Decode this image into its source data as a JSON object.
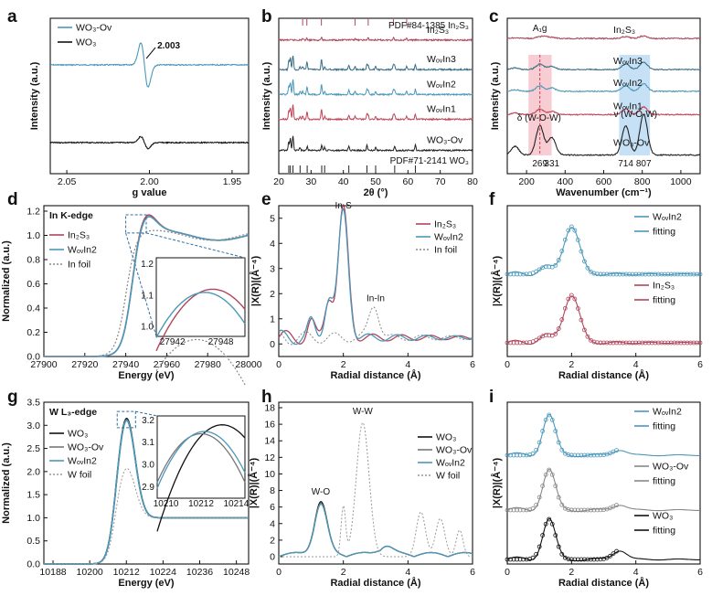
{
  "chart_data": [
    {
      "panel": "a",
      "type": "line",
      "xlabel": "g value",
      "ylabel": "Intensity (a.u.)",
      "xlim": [
        2.06,
        1.94
      ],
      "ylim": [
        0,
        1
      ],
      "xticks": [
        "2.05",
        "2.00",
        "1.95"
      ],
      "annotations": [
        "2.003"
      ],
      "series": [
        {
          "name": "WO3-Ov",
          "label": "WO₃-Ov",
          "color": "#4b98b9",
          "offset": 0.7,
          "amp": 0.26,
          "center": 2.003
        },
        {
          "name": "WO3",
          "label": "WO₃",
          "color": "#111111",
          "offset": 0.2,
          "amp": 0.07,
          "center": 2.003
        }
      ]
    },
    {
      "panel": "b",
      "type": "line",
      "xlabel": "2θ (°)",
      "ylabel": "Intensity (a.u.)",
      "xlim": [
        20,
        80
      ],
      "xticks": [
        "20",
        "30",
        "40",
        "50",
        "60",
        "70",
        "80"
      ],
      "ref_top": "PDF#84-1385 In₂S₃",
      "ref_bottom": "PDF#71-2141 WO₃",
      "series": [
        {
          "name": "In2S3",
          "label": "In₂S₃",
          "color": "#b0465c",
          "offset": 0.86
        },
        {
          "name": "WOvIn3",
          "label": "WₒᵥIn3",
          "color": "#3a6f88",
          "offset": 0.67
        },
        {
          "name": "WOvIn2",
          "label": "WₒᵥIn2",
          "color": "#4b98b9",
          "offset": 0.51
        },
        {
          "name": "WOvIn1",
          "label": "WₒᵥIn1",
          "color": "#c14457",
          "offset": 0.35
        },
        {
          "name": "WO3-Ov",
          "label": "WO₃-Ov",
          "color": "#222222",
          "offset": 0.15
        }
      ]
    },
    {
      "panel": "c",
      "type": "line",
      "xlabel": "Wavenumber (cm⁻¹)",
      "ylabel": "Intensity (a.u.)",
      "xlim": [
        100,
        1100
      ],
      "xticks": [
        "200",
        "400",
        "600",
        "800",
        "1000"
      ],
      "peak_labels": [
        "269",
        "331",
        "714",
        "807"
      ],
      "mode_labels": [
        "A₁g",
        "δ (W-O-W)",
        "ν (W-O-W)"
      ],
      "series": [
        {
          "name": "In2S3",
          "label": "In₂S₃",
          "color": "#b0465c",
          "offset": 0.87
        },
        {
          "name": "WOvIn3",
          "label": "WₒᵥIn3",
          "color": "#3a6f88",
          "offset": 0.67
        },
        {
          "name": "WOvIn2",
          "label": "WₒᵥIn2",
          "color": "#4b98b9",
          "offset": 0.53
        },
        {
          "name": "WOvIn1",
          "label": "WₒᵥIn1",
          "color": "#c14457",
          "offset": 0.38
        },
        {
          "name": "WO3-Ov",
          "label": "WO₃-Ov",
          "color": "#222222",
          "offset": 0.12
        }
      ]
    },
    {
      "panel": "d",
      "type": "line",
      "title": "In K-edge",
      "xlabel": "Energy (eV)",
      "ylabel": "Normalized (a.u.)",
      "xlim": [
        27900,
        28000
      ],
      "ylim": [
        0,
        1.2
      ],
      "xticks": [
        "27900",
        "27920",
        "27940",
        "27960",
        "27980",
        "28000"
      ],
      "yticks": [
        "0.0",
        "0.2",
        "0.4",
        "0.6",
        "0.8",
        "1.0",
        "1.2"
      ],
      "inset": {
        "xticks": [
          "27942",
          "27948"
        ],
        "yticks": [
          "1.0",
          "1.1",
          "1.2"
        ]
      },
      "series": [
        {
          "name": "In2S3",
          "label": "In₂S₃",
          "color": "#b0465c",
          "edge": 27943,
          "peak": 1.12
        },
        {
          "name": "WOvIn2",
          "label": "WₒᵥIn2",
          "color": "#4b98b9",
          "edge": 27943,
          "peak": 1.11
        },
        {
          "name": "In foil",
          "label": "In foil",
          "color": "#888888",
          "edge": 27940,
          "peak": 1.01
        }
      ]
    },
    {
      "panel": "e",
      "type": "line",
      "xlabel": "Radial distance (Å)",
      "ylabel": "|X(R)|(Å⁻⁴)",
      "xlim": [
        0,
        6
      ],
      "ylim": [
        -0.5,
        5.5
      ],
      "xticks": [
        "0",
        "2",
        "4",
        "6"
      ],
      "yticks": [
        "0",
        "1",
        "2",
        "3",
        "4",
        "5"
      ],
      "annotations": [
        "In-S",
        "In-In"
      ],
      "series": [
        {
          "name": "In2S3",
          "label": "In₂S₃",
          "color": "#b0465c",
          "peak_r": 2.0,
          "peak": 5.1
        },
        {
          "name": "WOvIn2",
          "label": "WₒᵥIn2",
          "color": "#4b98b9",
          "peak_r": 2.0,
          "peak": 5.0
        },
        {
          "name": "In foil",
          "label": "In foil",
          "color": "#888888",
          "peak_r": 2.95,
          "peak": 1.3
        }
      ]
    },
    {
      "panel": "f",
      "type": "line",
      "xlabel": "Radial distance (Å)",
      "ylabel": "|X(R)|(Å⁻⁴)",
      "xlim": [
        0,
        6
      ],
      "xticks": [
        "0",
        "2",
        "4",
        "6"
      ],
      "series": [
        {
          "name": "WOvIn2",
          "label": "WₒᵥIn2",
          "color": "#4b98b9"
        },
        {
          "name": "fitting (WOvIn2)",
          "label": "fitting",
          "color": "#4b98b9"
        },
        {
          "name": "In2S3",
          "label": "In₂S₃",
          "color": "#b0465c"
        },
        {
          "name": "fitting (In2S3)",
          "label": "fitting",
          "color": "#b0465c"
        }
      ]
    },
    {
      "panel": "g",
      "type": "line",
      "title": "W L₃-edge",
      "xlabel": "Energy (eV)",
      "ylabel": "Normalized (a.u.)",
      "xlim": [
        10185,
        10252
      ],
      "ylim": [
        0,
        3.5
      ],
      "xticks": [
        "10188",
        "10200",
        "10212",
        "10224",
        "10236",
        "10248"
      ],
      "yticks": [
        "0.0",
        "0.5",
        "1.0",
        "1.5",
        "2.0",
        "2.5",
        "3.0",
        "3.5"
      ],
      "inset": {
        "xticks": [
          "10210",
          "10212",
          "10214"
        ],
        "yticks": [
          "2.9",
          "3.0",
          "3.1",
          "3.2"
        ]
      },
      "series": [
        {
          "name": "WO3",
          "label": "WO₃",
          "color": "#111111",
          "peak": 3.18
        },
        {
          "name": "WO3-Ov",
          "label": "WO₃-Ov",
          "color": "#777777",
          "peak": 3.14
        },
        {
          "name": "WOvIn2",
          "label": "WₒᵥIn2",
          "color": "#4b98b9",
          "peak": 3.15
        },
        {
          "name": "W foil",
          "label": "W foil",
          "color": "#999999",
          "peak": 2.1
        }
      ]
    },
    {
      "panel": "h",
      "type": "line",
      "xlabel": "Radial distance (Å)",
      "ylabel": "|X(R)|(Å⁻⁴)",
      "xlim": [
        0,
        6
      ],
      "ylim": [
        0,
        18
      ],
      "xticks": [
        "0",
        "2",
        "4",
        "6"
      ],
      "yticks": [
        "0",
        "2",
        "4",
        "6",
        "8",
        "10",
        "12",
        "14",
        "16",
        "18"
      ],
      "annotations": [
        "W-O",
        "W-W"
      ],
      "series": [
        {
          "name": "WO3",
          "label": "WO₃",
          "color": "#111111",
          "peak_r": 1.3,
          "peak": 6.3
        },
        {
          "name": "WO3-Ov",
          "label": "WO₃-Ov",
          "color": "#777777",
          "peak_r": 1.3,
          "peak": 6.1
        },
        {
          "name": "WOvIn2",
          "label": "WₒᵥIn2",
          "color": "#4b98b9",
          "peak_r": 1.3,
          "peak": 6.0
        },
        {
          "name": "W foil",
          "label": "W foil",
          "color": "#999999",
          "peak_r": 2.6,
          "peak": 16.2
        }
      ]
    },
    {
      "panel": "i",
      "type": "line",
      "xlabel": "Radial distance (Å)",
      "ylabel": "|X(R)|(Å⁻⁴)",
      "xlim": [
        0,
        6
      ],
      "xticks": [
        "0",
        "2",
        "4",
        "6"
      ],
      "series": [
        {
          "name": "WOvIn2",
          "label": "WₒᵥIn2",
          "color": "#4b98b9"
        },
        {
          "name": "fitting (WOvIn2)",
          "label": "fitting",
          "color": "#4b98b9"
        },
        {
          "name": "WO3-Ov",
          "label": "WO₃-Ov",
          "color": "#888888"
        },
        {
          "name": "fitting (WO3-Ov)",
          "label": "fitting",
          "color": "#888888"
        },
        {
          "name": "WO3",
          "label": "WO₃",
          "color": "#111111"
        },
        {
          "name": "fitting (WO3)",
          "label": "fitting",
          "color": "#111111"
        }
      ]
    }
  ]
}
